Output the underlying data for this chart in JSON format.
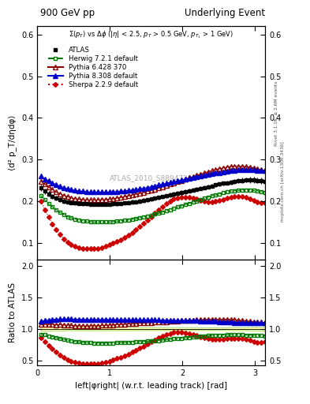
{
  "title_left": "900 GeV pp",
  "title_right": "Underlying Event",
  "watermark": "ATLAS_2010_S8894728",
  "ylabel_main": "⟨d² p_T/dηdφ⟩",
  "ylabel_ratio": "Ratio to ATLAS",
  "xlabel": "left|φright| (w.r.t. leading track) [rad]",
  "right_label_top": "Rivet 3.1.10, ≥ 2.6M events",
  "right_label_bot": "mcplots.cern.ch [arXiv:1306.3436]",
  "ylim_main": [
    0.06,
    0.62
  ],
  "ylim_ratio": [
    0.42,
    2.1
  ],
  "yticks_main": [
    0.1,
    0.2,
    0.3,
    0.4,
    0.5,
    0.6
  ],
  "yticks_ratio": [
    0.5,
    1.0,
    1.5,
    2.0
  ],
  "xlim": [
    0.0,
    3.14159
  ],
  "xticks": [
    0,
    1,
    2,
    3
  ],
  "series_order": [
    "ATLAS",
    "Herwig",
    "Pythia6",
    "Pythia8",
    "Sherpa"
  ],
  "series": {
    "ATLAS": {
      "color": "black",
      "marker": "s",
      "markersize": 3.5,
      "linestyle": "none",
      "fillstyle": "full",
      "label": "ATLAS",
      "x": [
        0.052,
        0.105,
        0.157,
        0.209,
        0.262,
        0.314,
        0.367,
        0.419,
        0.471,
        0.524,
        0.576,
        0.628,
        0.681,
        0.733,
        0.785,
        0.838,
        0.89,
        0.942,
        0.995,
        1.047,
        1.1,
        1.152,
        1.204,
        1.257,
        1.309,
        1.361,
        1.414,
        1.466,
        1.518,
        1.571,
        1.623,
        1.675,
        1.728,
        1.78,
        1.833,
        1.885,
        1.937,
        1.99,
        2.042,
        2.094,
        2.147,
        2.199,
        2.251,
        2.304,
        2.356,
        2.408,
        2.461,
        2.513,
        2.565,
        2.618,
        2.67,
        2.722,
        2.775,
        2.827,
        2.88,
        2.932,
        2.984,
        3.037,
        3.089,
        3.142
      ],
      "y": [
        0.232,
        0.224,
        0.218,
        0.212,
        0.208,
        0.204,
        0.201,
        0.199,
        0.197,
        0.196,
        0.195,
        0.194,
        0.194,
        0.193,
        0.193,
        0.193,
        0.193,
        0.193,
        0.193,
        0.194,
        0.194,
        0.195,
        0.196,
        0.197,
        0.198,
        0.199,
        0.2,
        0.202,
        0.203,
        0.205,
        0.207,
        0.209,
        0.211,
        0.213,
        0.215,
        0.217,
        0.219,
        0.221,
        0.223,
        0.225,
        0.227,
        0.229,
        0.231,
        0.233,
        0.235,
        0.237,
        0.239,
        0.241,
        0.243,
        0.244,
        0.246,
        0.248,
        0.249,
        0.25,
        0.251,
        0.251,
        0.251,
        0.25,
        0.249,
        0.248
      ],
      "yerr": [
        0.008,
        0.007,
        0.007,
        0.006,
        0.006,
        0.006,
        0.006,
        0.005,
        0.005,
        0.005,
        0.005,
        0.005,
        0.005,
        0.005,
        0.005,
        0.005,
        0.005,
        0.005,
        0.005,
        0.005,
        0.005,
        0.005,
        0.005,
        0.005,
        0.005,
        0.005,
        0.005,
        0.005,
        0.005,
        0.005,
        0.005,
        0.005,
        0.005,
        0.005,
        0.005,
        0.005,
        0.005,
        0.005,
        0.005,
        0.005,
        0.005,
        0.005,
        0.005,
        0.005,
        0.005,
        0.005,
        0.005,
        0.005,
        0.005,
        0.005,
        0.006,
        0.006,
        0.006,
        0.006,
        0.006,
        0.007,
        0.007,
        0.007,
        0.008,
        0.008
      ]
    },
    "Herwig": {
      "color": "#007700",
      "marker": "s",
      "markersize": 3.5,
      "linestyle": "--",
      "fillstyle": "none",
      "label": "Herwig 7.2.1 default",
      "x": [
        0.052,
        0.105,
        0.157,
        0.209,
        0.262,
        0.314,
        0.367,
        0.419,
        0.471,
        0.524,
        0.576,
        0.628,
        0.681,
        0.733,
        0.785,
        0.838,
        0.89,
        0.942,
        0.995,
        1.047,
        1.1,
        1.152,
        1.204,
        1.257,
        1.309,
        1.361,
        1.414,
        1.466,
        1.518,
        1.571,
        1.623,
        1.675,
        1.728,
        1.78,
        1.833,
        1.885,
        1.937,
        1.99,
        2.042,
        2.094,
        2.147,
        2.199,
        2.251,
        2.304,
        2.356,
        2.408,
        2.461,
        2.513,
        2.565,
        2.618,
        2.67,
        2.722,
        2.775,
        2.827,
        2.88,
        2.932,
        2.984,
        3.037,
        3.089,
        3.142
      ],
      "y": [
        0.213,
        0.203,
        0.194,
        0.186,
        0.179,
        0.173,
        0.168,
        0.163,
        0.16,
        0.157,
        0.155,
        0.153,
        0.152,
        0.151,
        0.15,
        0.15,
        0.15,
        0.15,
        0.15,
        0.151,
        0.152,
        0.153,
        0.154,
        0.155,
        0.157,
        0.158,
        0.16,
        0.162,
        0.164,
        0.166,
        0.169,
        0.171,
        0.174,
        0.177,
        0.18,
        0.183,
        0.186,
        0.189,
        0.192,
        0.195,
        0.198,
        0.201,
        0.204,
        0.207,
        0.21,
        0.213,
        0.215,
        0.218,
        0.22,
        0.222,
        0.224,
        0.225,
        0.226,
        0.227,
        0.227,
        0.227,
        0.226,
        0.225,
        0.223,
        0.221
      ]
    },
    "Pythia6": {
      "color": "#880000",
      "marker": "^",
      "markersize": 4,
      "linestyle": "-",
      "fillstyle": "none",
      "label": "Pythia 6.428 370",
      "x": [
        0.052,
        0.105,
        0.157,
        0.209,
        0.262,
        0.314,
        0.367,
        0.419,
        0.471,
        0.524,
        0.576,
        0.628,
        0.681,
        0.733,
        0.785,
        0.838,
        0.89,
        0.942,
        0.995,
        1.047,
        1.1,
        1.152,
        1.204,
        1.257,
        1.309,
        1.361,
        1.414,
        1.466,
        1.518,
        1.571,
        1.623,
        1.675,
        1.728,
        1.78,
        1.833,
        1.885,
        1.937,
        1.99,
        2.042,
        2.094,
        2.147,
        2.199,
        2.251,
        2.304,
        2.356,
        2.408,
        2.461,
        2.513,
        2.565,
        2.618,
        2.67,
        2.722,
        2.775,
        2.827,
        2.88,
        2.932,
        2.984,
        3.037,
        3.089,
        3.142
      ],
      "y": [
        0.248,
        0.241,
        0.234,
        0.228,
        0.222,
        0.218,
        0.214,
        0.211,
        0.208,
        0.206,
        0.205,
        0.204,
        0.203,
        0.203,
        0.203,
        0.203,
        0.204,
        0.204,
        0.205,
        0.206,
        0.208,
        0.209,
        0.211,
        0.213,
        0.215,
        0.217,
        0.219,
        0.221,
        0.224,
        0.226,
        0.229,
        0.232,
        0.235,
        0.238,
        0.241,
        0.244,
        0.247,
        0.25,
        0.253,
        0.256,
        0.259,
        0.262,
        0.265,
        0.268,
        0.271,
        0.273,
        0.276,
        0.278,
        0.28,
        0.282,
        0.283,
        0.284,
        0.284,
        0.284,
        0.283,
        0.282,
        0.28,
        0.278,
        0.276,
        0.274
      ]
    },
    "Pythia8": {
      "color": "#0000cc",
      "marker": "^",
      "markersize": 4,
      "linestyle": "-",
      "fillstyle": "full",
      "label": "Pythia 8.308 default",
      "x": [
        0.052,
        0.105,
        0.157,
        0.209,
        0.262,
        0.314,
        0.367,
        0.419,
        0.471,
        0.524,
        0.576,
        0.628,
        0.681,
        0.733,
        0.785,
        0.838,
        0.89,
        0.942,
        0.995,
        1.047,
        1.1,
        1.152,
        1.204,
        1.257,
        1.309,
        1.361,
        1.414,
        1.466,
        1.518,
        1.571,
        1.623,
        1.675,
        1.728,
        1.78,
        1.833,
        1.885,
        1.937,
        1.99,
        2.042,
        2.094,
        2.147,
        2.199,
        2.251,
        2.304,
        2.356,
        2.408,
        2.461,
        2.513,
        2.565,
        2.618,
        2.67,
        2.722,
        2.775,
        2.827,
        2.88,
        2.932,
        2.984,
        3.037,
        3.089,
        3.142
      ],
      "y": [
        0.26,
        0.254,
        0.249,
        0.244,
        0.24,
        0.236,
        0.233,
        0.23,
        0.228,
        0.226,
        0.225,
        0.224,
        0.223,
        0.222,
        0.222,
        0.222,
        0.222,
        0.222,
        0.222,
        0.223,
        0.223,
        0.224,
        0.225,
        0.226,
        0.227,
        0.228,
        0.23,
        0.231,
        0.233,
        0.235,
        0.237,
        0.239,
        0.241,
        0.243,
        0.245,
        0.247,
        0.249,
        0.251,
        0.253,
        0.255,
        0.257,
        0.259,
        0.261,
        0.263,
        0.265,
        0.266,
        0.268,
        0.269,
        0.271,
        0.272,
        0.273,
        0.274,
        0.275,
        0.275,
        0.275,
        0.275,
        0.275,
        0.274,
        0.274,
        0.273
      ]
    },
    "Sherpa": {
      "color": "#cc0000",
      "marker": "D",
      "markersize": 3,
      "linestyle": ":",
      "fillstyle": "full",
      "label": "Sherpa 2.2.9 default",
      "x": [
        0.052,
        0.105,
        0.157,
        0.209,
        0.262,
        0.314,
        0.367,
        0.419,
        0.471,
        0.524,
        0.576,
        0.628,
        0.681,
        0.733,
        0.785,
        0.838,
        0.89,
        0.942,
        0.995,
        1.047,
        1.1,
        1.152,
        1.204,
        1.257,
        1.309,
        1.361,
        1.414,
        1.466,
        1.518,
        1.571,
        1.623,
        1.675,
        1.728,
        1.78,
        1.833,
        1.885,
        1.937,
        1.99,
        2.042,
        2.094,
        2.147,
        2.199,
        2.251,
        2.304,
        2.356,
        2.408,
        2.461,
        2.513,
        2.565,
        2.618,
        2.67,
        2.722,
        2.775,
        2.827,
        2.88,
        2.932,
        2.984,
        3.037,
        3.089,
        3.142
      ],
      "y": [
        0.2,
        0.18,
        0.162,
        0.146,
        0.132,
        0.12,
        0.11,
        0.102,
        0.096,
        0.092,
        0.089,
        0.087,
        0.086,
        0.086,
        0.086,
        0.087,
        0.089,
        0.092,
        0.095,
        0.099,
        0.103,
        0.108,
        0.113,
        0.119,
        0.125,
        0.132,
        0.139,
        0.147,
        0.155,
        0.163,
        0.171,
        0.179,
        0.187,
        0.194,
        0.2,
        0.205,
        0.208,
        0.21,
        0.21,
        0.209,
        0.207,
        0.205,
        0.202,
        0.2,
        0.199,
        0.199,
        0.2,
        0.202,
        0.204,
        0.207,
        0.209,
        0.211,
        0.212,
        0.211,
        0.209,
        0.206,
        0.202,
        0.198,
        0.196,
        0.197
      ]
    }
  },
  "background_color": "#ffffff",
  "atlas_band_color": "#ffffaa",
  "atlas_band_outline": "#cccc00"
}
